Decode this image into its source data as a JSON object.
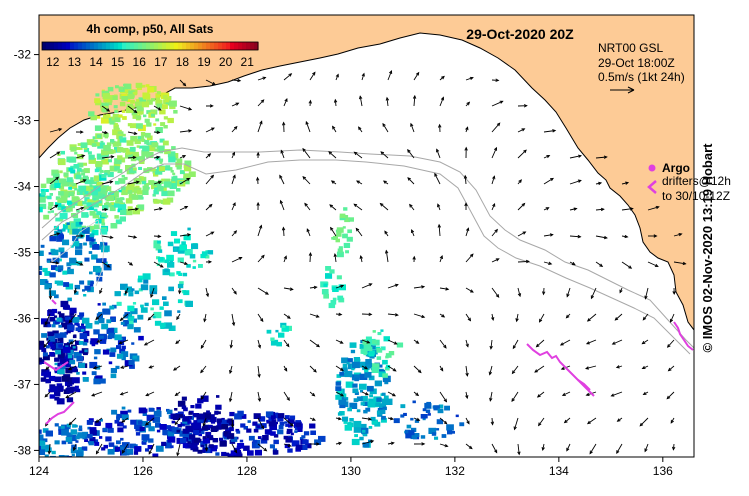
{
  "title": "29-Oct-2020 20Z",
  "colorbar": {
    "title": "4h comp, p50, All Sats",
    "labels": [
      "12",
      "13",
      "14",
      "15",
      "16",
      "17",
      "18",
      "19",
      "20",
      "21"
    ],
    "range": [
      11.5,
      21.5
    ]
  },
  "current_info": {
    "line1": "NRT00 GSL",
    "line2": "29-Oct 18:00Z",
    "line3": "0.5m/s (1kt 24h)"
  },
  "argo": {
    "title": "Argo",
    "line1": "drifters@12h",
    "line2": "to 30/10-12Z"
  },
  "credit": "© IMOS 02-Nov-2020 13:19 Hobart",
  "axes": {
    "x_ticks": [
      "124",
      "126",
      "128",
      "130",
      "132",
      "134",
      "136"
    ],
    "y_ticks": [
      "-32",
      "-33",
      "-34",
      "-35",
      "-36",
      "-37",
      "-38"
    ],
    "lon_range": [
      124,
      136.6
    ],
    "lat_range": [
      -38.1,
      -31.4
    ]
  },
  "colors": {
    "land": "#fdcb96",
    "coast": "#000000",
    "isobath": "#a8a8a8",
    "argo": "#e040e0"
  }
}
